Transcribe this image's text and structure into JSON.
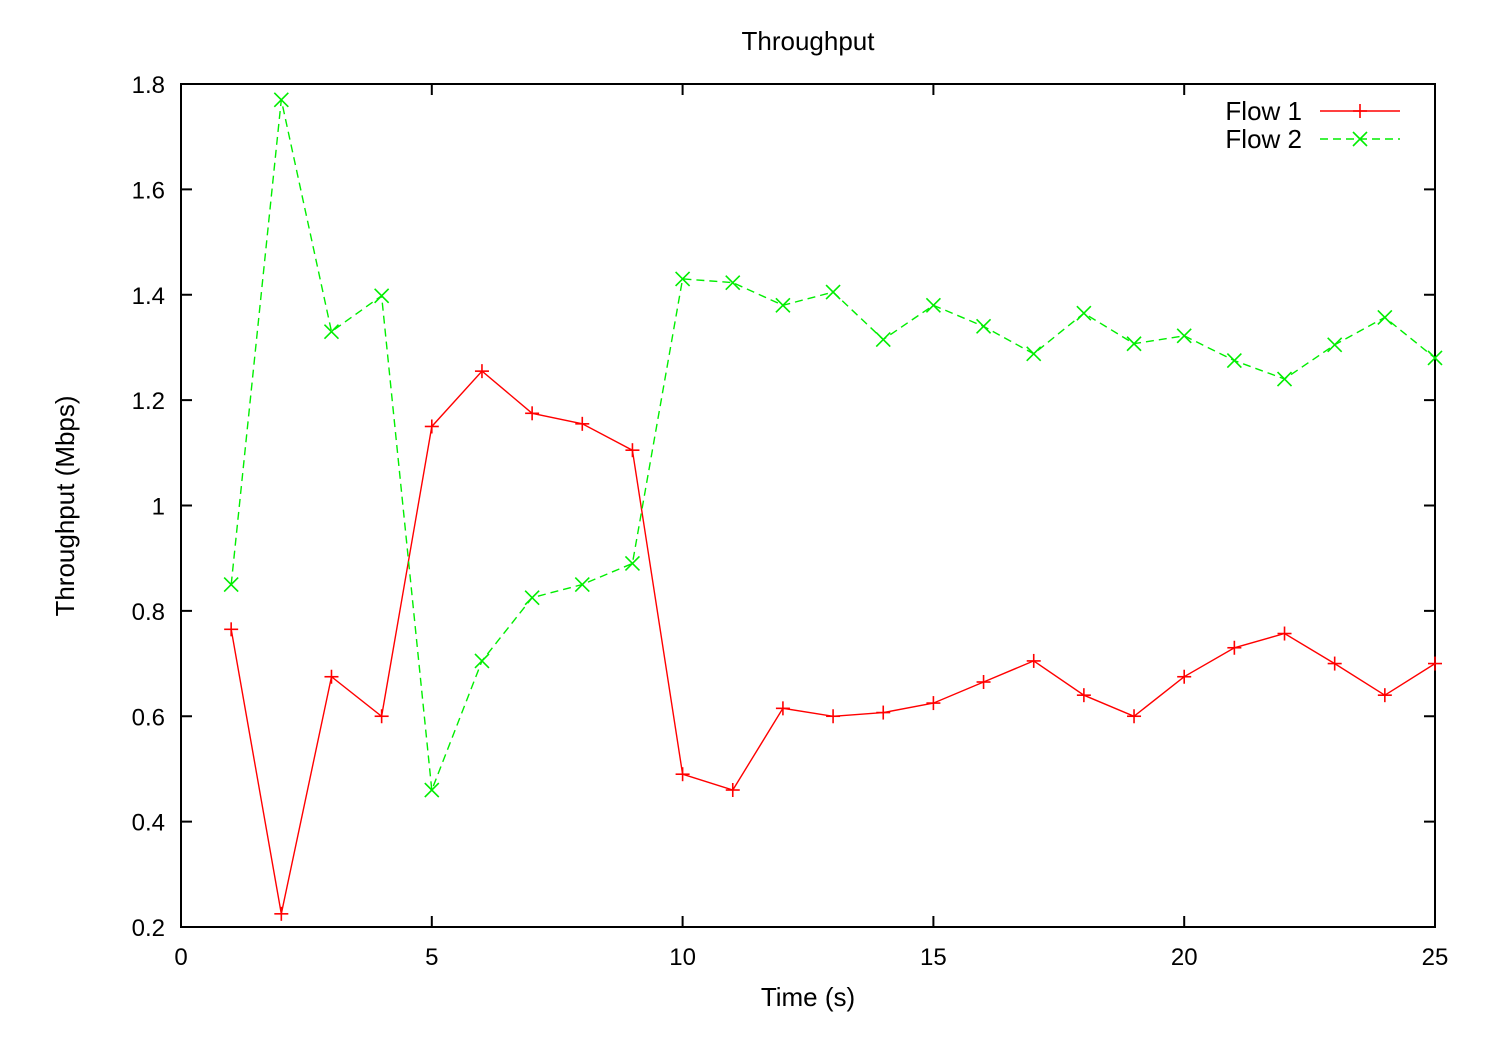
{
  "chart_data": {
    "type": "line",
    "title": "Throughput",
    "xlabel": "Time (s)",
    "ylabel": "Throughput (Mbps)",
    "xlim": [
      0,
      25
    ],
    "ylim": [
      0.2,
      1.8
    ],
    "xticks": [
      0,
      5,
      10,
      15,
      20,
      25
    ],
    "yticks": [
      0.2,
      0.4,
      0.6,
      0.8,
      1.0,
      1.2,
      1.4,
      1.6,
      1.8
    ],
    "xtick_labels": [
      "0",
      "5",
      "10",
      "15",
      "20",
      "25"
    ],
    "ytick_labels": [
      "0.2",
      "0.4",
      "0.6",
      "0.8",
      "1",
      "1.2",
      "1.4",
      "1.6",
      "1.8"
    ],
    "grid": false,
    "legend_position": "top-right",
    "series": [
      {
        "name": "Flow 1",
        "color": "#ff0000",
        "marker": "plus",
        "line_style": "solid",
        "x": [
          1,
          2,
          3,
          4,
          5,
          6,
          7,
          8,
          9,
          10,
          11,
          12,
          13,
          14,
          15,
          16,
          17,
          18,
          19,
          20,
          21,
          22,
          23,
          24,
          25
        ],
        "values": [
          0.765,
          0.225,
          0.675,
          0.6,
          1.15,
          1.255,
          1.175,
          1.155,
          1.105,
          0.49,
          0.46,
          0.615,
          0.6,
          0.607,
          0.625,
          0.665,
          0.705,
          0.64,
          0.6,
          0.675,
          0.73,
          0.757,
          0.7,
          0.64,
          0.7
        ]
      },
      {
        "name": "Flow 2",
        "color": "#00ee00",
        "marker": "cross",
        "line_style": "dashed",
        "x": [
          1,
          2,
          3,
          4,
          5,
          6,
          7,
          8,
          9,
          10,
          11,
          12,
          13,
          14,
          15,
          16,
          17,
          18,
          19,
          20,
          21,
          22,
          23,
          24,
          25
        ],
        "values": [
          0.85,
          1.77,
          1.33,
          1.398,
          0.46,
          0.705,
          0.825,
          0.85,
          0.89,
          1.43,
          1.423,
          1.38,
          1.405,
          1.315,
          1.38,
          1.34,
          1.288,
          1.365,
          1.307,
          1.322,
          1.275,
          1.24,
          1.305,
          1.357,
          1.28
        ]
      }
    ]
  }
}
